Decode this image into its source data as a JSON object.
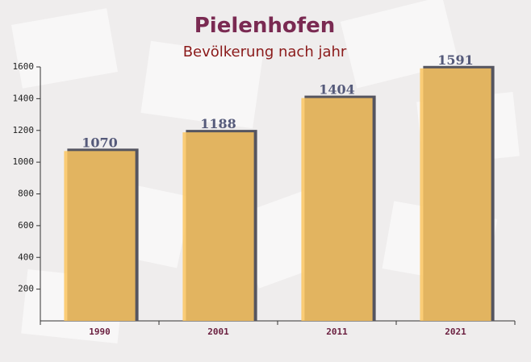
{
  "chart_data": {
    "type": "bar",
    "title": "Pielenhofen",
    "subtitle": "Bevölkerung nach jahr",
    "categories": [
      "1990",
      "2001",
      "2011",
      "2021"
    ],
    "values": [
      1070,
      1188,
      1404,
      1591
    ],
    "color": "#fcc560",
    "ylim": [
      0,
      1600
    ],
    "yticks": [
      200,
      400,
      600,
      800,
      1000,
      1200,
      1400,
      1600
    ]
  }
}
